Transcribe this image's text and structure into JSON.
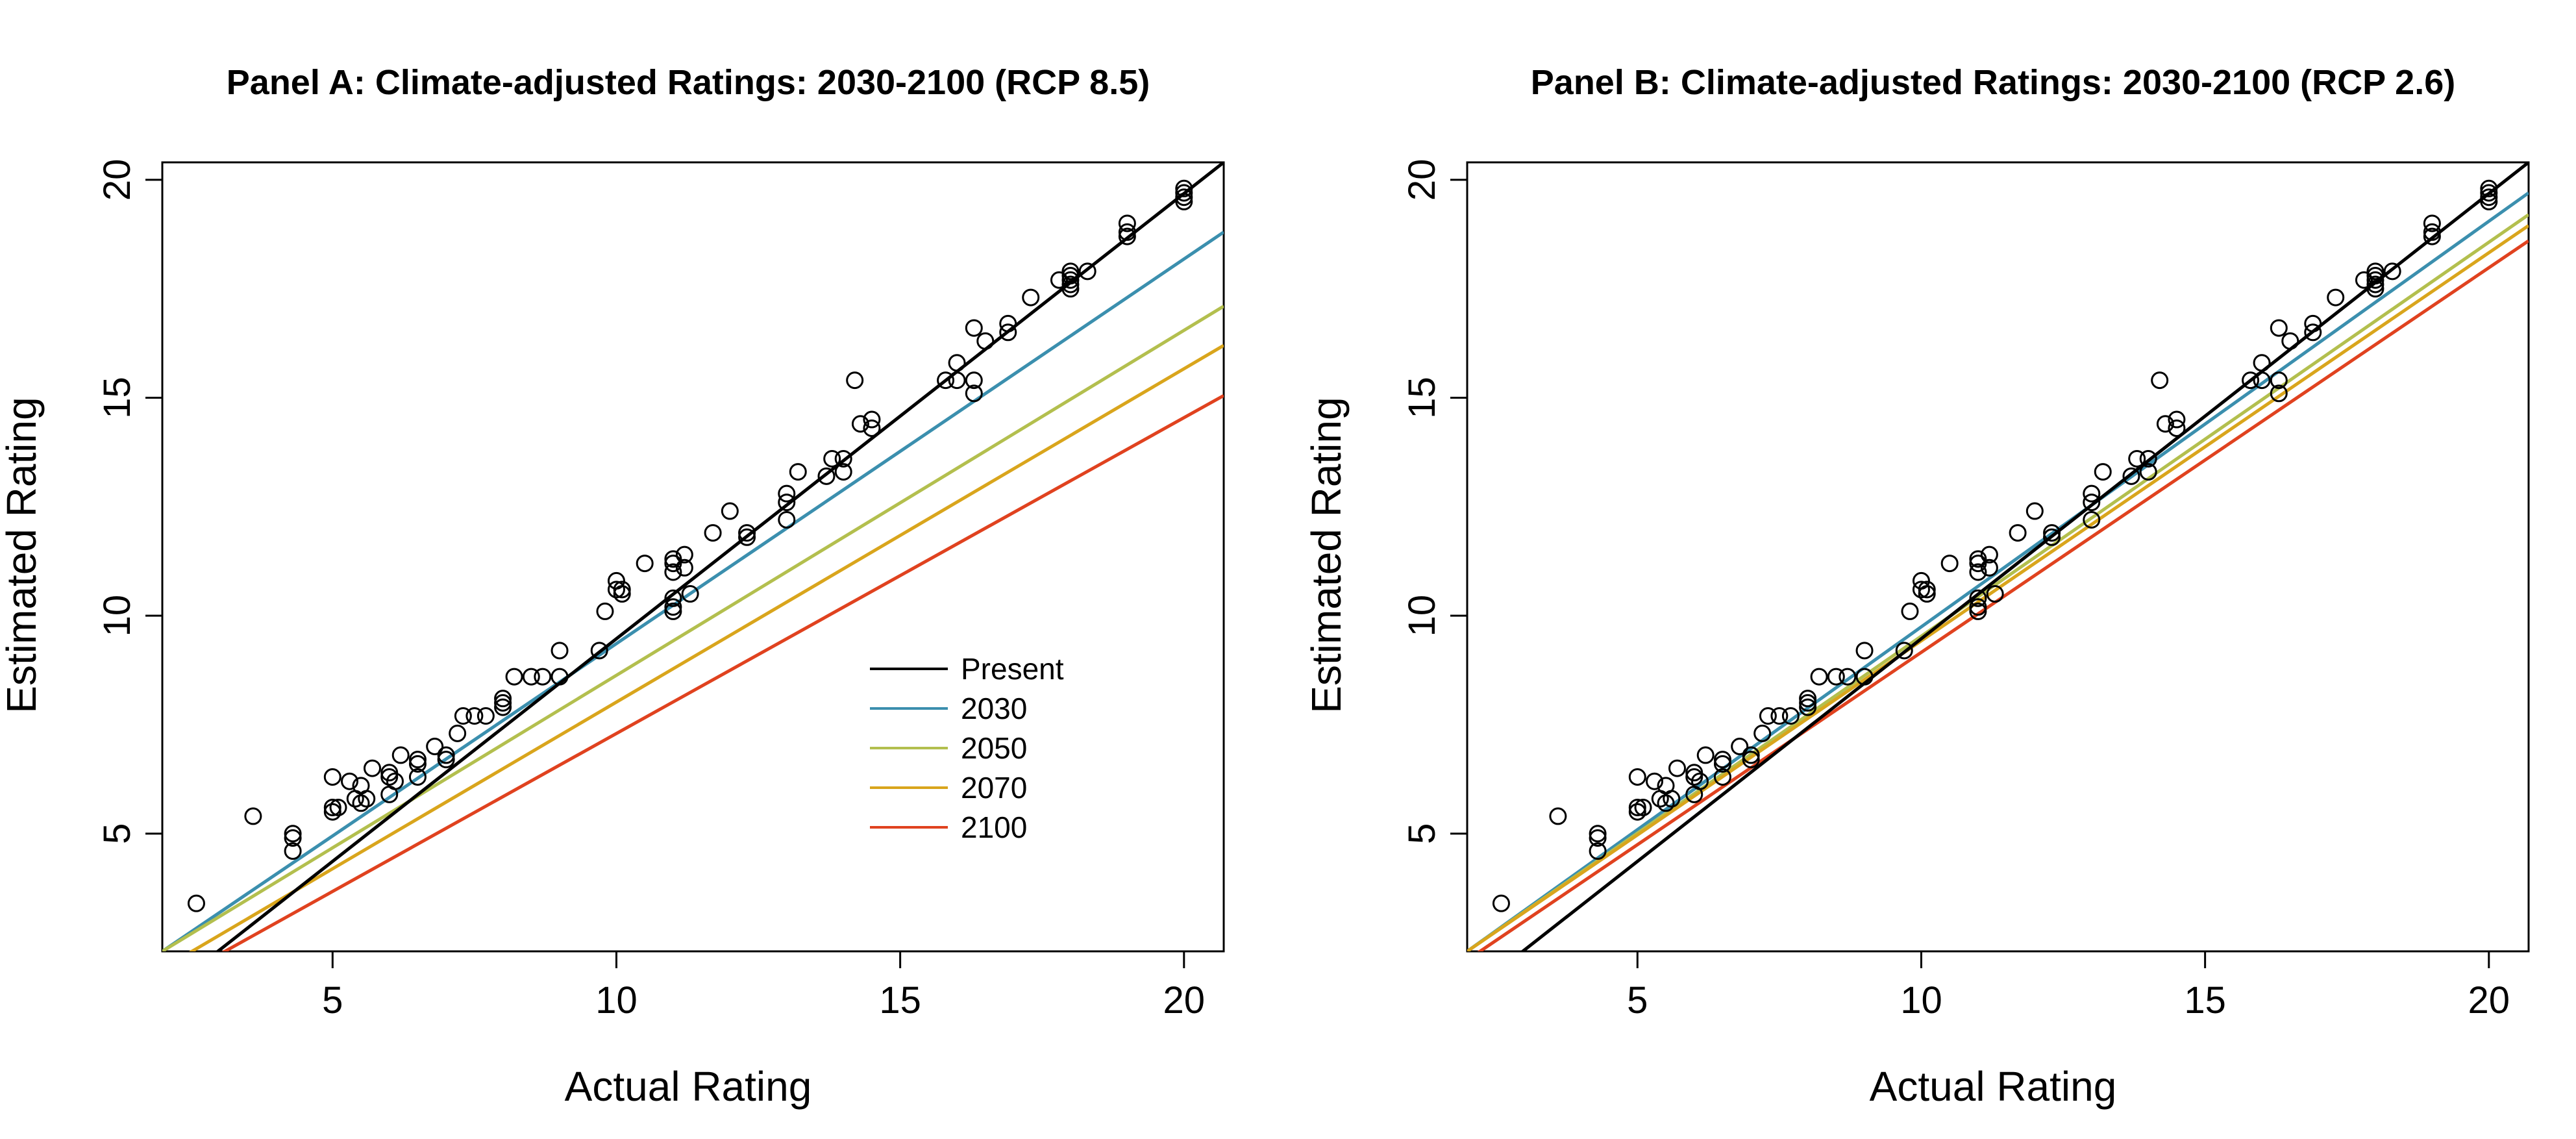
{
  "chart_data": [
    {
      "type": "scatter",
      "title": "Panel A: Climate-adjusted Ratings: 2030-2100 (RCP 8.5)",
      "xlabel": "Actual Rating",
      "ylabel": "Estimated Rating",
      "xlim": [
        2,
        20.7
      ],
      "ylim": [
        2.3,
        20.4
      ],
      "xticks": [
        5,
        10,
        15,
        20
      ],
      "yticks": [
        5,
        10,
        15,
        20
      ],
      "grid": false,
      "legend": "lower-right",
      "legend_entries": [
        {
          "label": "Present",
          "color": "#000000"
        },
        {
          "label": "2030",
          "color": "#3b8fae"
        },
        {
          "label": "2050",
          "color": "#b3bf4e"
        },
        {
          "label": "2070",
          "color": "#d9a51c"
        },
        {
          "label": "2100",
          "color": "#e0421f"
        }
      ],
      "lines": [
        {
          "name": "Present",
          "color": "#000000",
          "x": [
            2,
            20.7
          ],
          "y": [
            1.3,
            20.4
          ]
        },
        {
          "name": "2030",
          "color": "#3b8fae",
          "x": [
            2,
            20.7
          ],
          "y": [
            2.3,
            18.8
          ]
        },
        {
          "name": "2050",
          "color": "#b3bf4e",
          "x": [
            2,
            20.7
          ],
          "y": [
            2.3,
            17.1
          ]
        },
        {
          "name": "2070",
          "color": "#d9a51c",
          "x": [
            2,
            20.7
          ],
          "y": [
            1.9,
            16.2
          ]
        },
        {
          "name": "2100",
          "color": "#e0421f",
          "x": [
            2,
            20.7
          ],
          "y": [
            1.5,
            15.05
          ]
        }
      ],
      "points": {
        "x": [
          2.6,
          3.6,
          4.3,
          4.3,
          4.3,
          5,
          5,
          5,
          5.1,
          5.3,
          5.4,
          5.5,
          5.5,
          5.6,
          5.7,
          6,
          6,
          6,
          6.1,
          6.2,
          6.5,
          6.5,
          6.5,
          6.8,
          7,
          7,
          7.2,
          7.3,
          7.5,
          7.7,
          8,
          8,
          8,
          8.2,
          8.5,
          8.7,
          9,
          9,
          9.7,
          9.8,
          10,
          10,
          10.1,
          10.1,
          10.5,
          11,
          11,
          11,
          11,
          11,
          11,
          11.2,
          11.2,
          11.3,
          11.7,
          12,
          12.3,
          12.3,
          13,
          13,
          13,
          13.2,
          13.7,
          13.8,
          14,
          14,
          14.2,
          14.3,
          14.5,
          14.5,
          15.8,
          16,
          16,
          16.3,
          16.3,
          16.3,
          16.5,
          16.9,
          16.9,
          17.3,
          17.8,
          18,
          18,
          18,
          18,
          18,
          18.3,
          19,
          19,
          19,
          20,
          20,
          20,
          20
        ],
        "y": [
          3.4,
          5.4,
          5,
          4.9,
          4.6,
          6.3,
          5.6,
          5.5,
          5.6,
          6.2,
          5.8,
          6.1,
          5.7,
          5.8,
          6.5,
          6.4,
          6.3,
          5.9,
          6.2,
          6.8,
          6.7,
          6.6,
          6.3,
          7,
          6.8,
          6.7,
          7.3,
          7.7,
          7.7,
          7.7,
          8.1,
          8,
          7.9,
          8.6,
          8.6,
          8.6,
          9.2,
          8.6,
          9.2,
          10.1,
          10.8,
          10.6,
          10.5,
          10.6,
          11.2,
          11.3,
          11.2,
          11,
          10.4,
          10.2,
          10.1,
          11.4,
          11.1,
          10.5,
          11.9,
          12.4,
          11.8,
          11.9,
          12.6,
          12.8,
          12.2,
          13.3,
          13.2,
          13.6,
          13.6,
          13.3,
          15.4,
          14.4,
          14.5,
          14.3,
          15.4,
          15.8,
          15.4,
          16.6,
          15.4,
          15.1,
          16.3,
          16.7,
          16.5,
          17.3,
          17.7,
          17.9,
          17.7,
          17.8,
          17.6,
          17.5,
          17.9,
          19,
          18.8,
          18.7,
          19.8,
          19.7,
          19.6,
          19.5
        ]
      }
    },
    {
      "type": "scatter",
      "title": "Panel B: Climate-adjusted Ratings: 2030-2100 (RCP 2.6)",
      "xlabel": "Actual Rating",
      "ylabel": "Estimated Rating",
      "xlim": [
        2,
        20.7
      ],
      "ylim": [
        2.3,
        20.4
      ],
      "xticks": [
        5,
        10,
        15,
        20
      ],
      "yticks": [
        5,
        10,
        15,
        20
      ],
      "grid": false,
      "legend": "none",
      "lines": [
        {
          "name": "Present",
          "color": "#000000",
          "x": [
            2,
            20.7
          ],
          "y": [
            1.3,
            20.4
          ]
        },
        {
          "name": "2030",
          "color": "#3b8fae",
          "x": [
            2,
            20.7
          ],
          "y": [
            2.3,
            19.7
          ]
        },
        {
          "name": "2050",
          "color": "#b3bf4e",
          "x": [
            2,
            20.7
          ],
          "y": [
            2.3,
            19.2
          ]
        },
        {
          "name": "2070",
          "color": "#d9a51c",
          "x": [
            2,
            20.7
          ],
          "y": [
            2.3,
            18.95
          ]
        },
        {
          "name": "2100",
          "color": "#e0421f",
          "x": [
            2,
            20.7
          ],
          "y": [
            2.1,
            18.6
          ]
        }
      ],
      "points": {
        "x": [
          2.6,
          3.6,
          4.3,
          4.3,
          4.3,
          5,
          5,
          5,
          5.1,
          5.3,
          5.4,
          5.5,
          5.5,
          5.6,
          5.7,
          6,
          6,
          6,
          6.1,
          6.2,
          6.5,
          6.5,
          6.5,
          6.8,
          7,
          7,
          7.2,
          7.3,
          7.5,
          7.7,
          8,
          8,
          8,
          8.2,
          8.5,
          8.7,
          9,
          9,
          9.7,
          9.8,
          10,
          10,
          10.1,
          10.1,
          10.5,
          11,
          11,
          11,
          11,
          11,
          11,
          11.2,
          11.2,
          11.3,
          11.7,
          12,
          12.3,
          12.3,
          13,
          13,
          13,
          13.2,
          13.7,
          13.8,
          14,
          14,
          14.2,
          14.3,
          14.5,
          14.5,
          15.8,
          16,
          16,
          16.3,
          16.3,
          16.3,
          16.5,
          16.9,
          16.9,
          17.3,
          17.8,
          18,
          18,
          18,
          18,
          18,
          18.3,
          19,
          19,
          19,
          20,
          20,
          20,
          20
        ],
        "y": [
          3.4,
          5.4,
          5,
          4.9,
          4.6,
          6.3,
          5.6,
          5.5,
          5.6,
          6.2,
          5.8,
          6.1,
          5.7,
          5.8,
          6.5,
          6.4,
          6.3,
          5.9,
          6.2,
          6.8,
          6.7,
          6.6,
          6.3,
          7,
          6.8,
          6.7,
          7.3,
          7.7,
          7.7,
          7.7,
          8.1,
          8,
          7.9,
          8.6,
          8.6,
          8.6,
          9.2,
          8.6,
          9.2,
          10.1,
          10.8,
          10.6,
          10.5,
          10.6,
          11.2,
          11.3,
          11.2,
          11,
          10.4,
          10.2,
          10.1,
          11.4,
          11.1,
          10.5,
          11.9,
          12.4,
          11.8,
          11.9,
          12.6,
          12.8,
          12.2,
          13.3,
          13.2,
          13.6,
          13.6,
          13.3,
          15.4,
          14.4,
          14.5,
          14.3,
          15.4,
          15.8,
          15.4,
          16.6,
          15.4,
          15.1,
          16.3,
          16.7,
          16.5,
          17.3,
          17.7,
          17.9,
          17.7,
          17.8,
          17.6,
          17.5,
          17.9,
          19,
          18.8,
          18.7,
          19.8,
          19.7,
          19.6,
          19.5
        ]
      }
    }
  ]
}
